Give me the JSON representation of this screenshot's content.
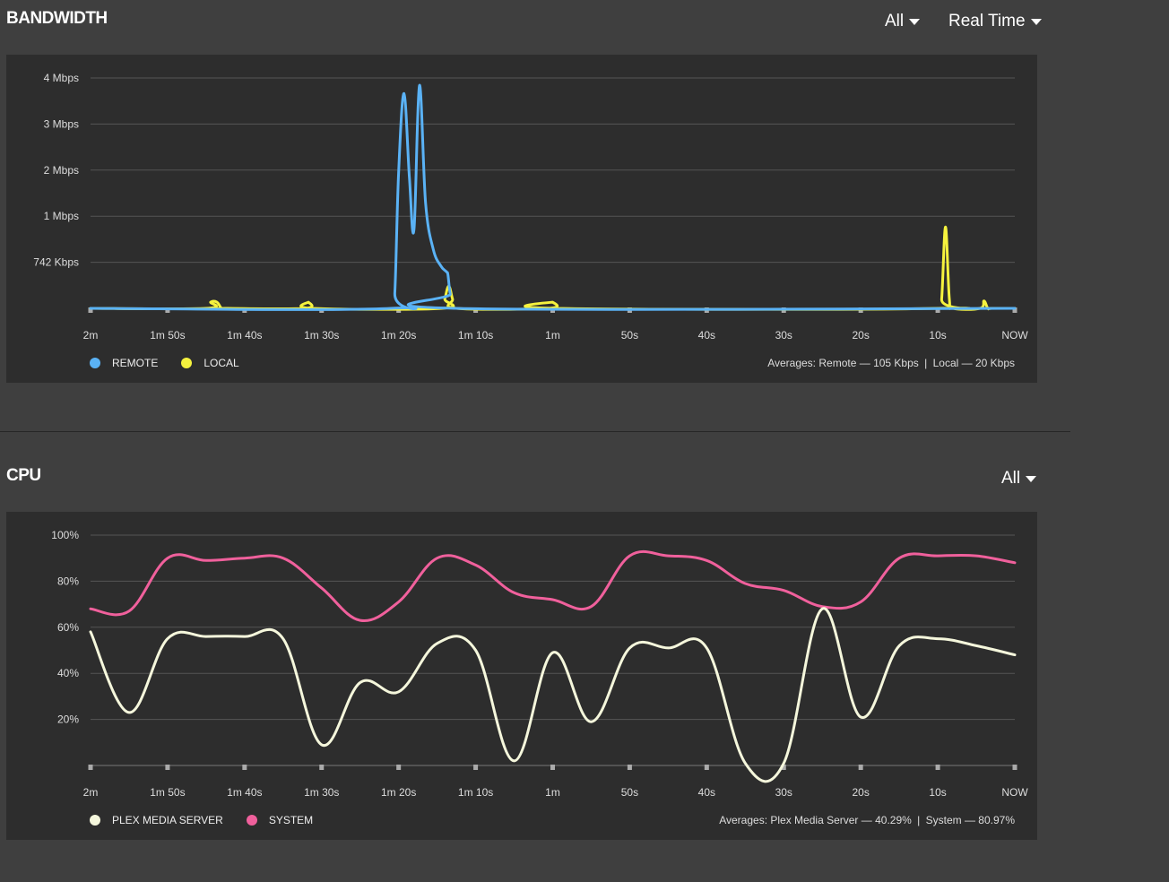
{
  "bandwidth": {
    "title": "BANDWIDTH",
    "filter_label": "All",
    "timeframe_label": "Real Time",
    "legend": [
      {
        "label": "REMOTE",
        "color": "#5ab2f5"
      },
      {
        "label": "LOCAL",
        "color": "#f5f23e"
      }
    ],
    "averages": {
      "prefix": "Averages:",
      "remote_label": "Remote",
      "remote_value": "105 Kbps",
      "separator": "|",
      "local_label": "Local",
      "local_value": "20 Kbps"
    }
  },
  "cpu": {
    "title": "CPU",
    "filter_label": "All",
    "legend": [
      {
        "label": "PLEX MEDIA SERVER",
        "color": "#f5f7dc"
      },
      {
        "label": "SYSTEM",
        "color": "#f0609c"
      }
    ],
    "averages": {
      "prefix": "Averages:",
      "pms_label": "Plex Media Server",
      "pms_value": "40.29%",
      "separator": "|",
      "system_label": "System",
      "system_value": "80.97%"
    }
  },
  "chart_data": [
    {
      "type": "line",
      "x_unit": "seconds ago",
      "x_ticks": [
        {
          "value": 120,
          "label": "2m"
        },
        {
          "value": 110,
          "label": "1m 50s"
        },
        {
          "value": 100,
          "label": "1m 40s"
        },
        {
          "value": 90,
          "label": "1m 30s"
        },
        {
          "value": 80,
          "label": "1m 20s"
        },
        {
          "value": 70,
          "label": "1m 10s"
        },
        {
          "value": 60,
          "label": "1m"
        },
        {
          "value": 50,
          "label": "50s"
        },
        {
          "value": 40,
          "label": "40s"
        },
        {
          "value": 30,
          "label": "30s"
        },
        {
          "value": 20,
          "label": "20s"
        },
        {
          "value": 10,
          "label": "10s"
        },
        {
          "value": 0,
          "label": "NOW"
        }
      ],
      "y_unit": "Kbps",
      "y_ticks": [
        {
          "value": 742,
          "label": "742 Kbps"
        },
        {
          "value": 1484,
          "label": "1 Mbps"
        },
        {
          "value": 2226,
          "label": "2 Mbps"
        },
        {
          "value": 2968,
          "label": "3 Mbps"
        },
        {
          "value": 3710,
          "label": "4 Mbps"
        }
      ],
      "ylim": [
        0,
        3710
      ],
      "grid": true,
      "series": [
        {
          "name": "REMOTE",
          "color": "#5ab2f5",
          "x": [
            120,
            81,
            80.5,
            80,
            79.3,
            78.6,
            78,
            77.3,
            76.5,
            75.5,
            74.5,
            73.8,
            73.6,
            73.3,
            72.8,
            0
          ],
          "y": [
            0,
            0,
            250,
            2200,
            3460,
            2100,
            1270,
            3590,
            1700,
            950,
            680,
            590,
            540,
            230,
            0,
            0
          ]
        },
        {
          "name": "LOCAL",
          "color": "#f5f23e",
          "x": [
            120,
            105,
            104.4,
            103.6,
            103,
            102.5,
            92.2,
            91.7,
            91.2,
            74.3,
            74,
            73.5,
            73,
            72.5,
            60.5,
            60,
            59.5,
            10,
            9.5,
            9,
            8.5,
            8,
            4.5,
            4,
            3.5,
            3,
            0
          ],
          "y": [
            0,
            0,
            100,
            100,
            0,
            0,
            0,
            100,
            0,
            0,
            150,
            360,
            150,
            0,
            0,
            100,
            0,
            0,
            150,
            1310,
            150,
            0,
            0,
            120,
            0,
            0,
            0
          ]
        }
      ]
    },
    {
      "type": "line",
      "x_unit": "seconds ago",
      "x_ticks": [
        {
          "value": 120,
          "label": "2m"
        },
        {
          "value": 110,
          "label": "1m 50s"
        },
        {
          "value": 100,
          "label": "1m 40s"
        },
        {
          "value": 90,
          "label": "1m 30s"
        },
        {
          "value": 80,
          "label": "1m 20s"
        },
        {
          "value": 70,
          "label": "1m 10s"
        },
        {
          "value": 60,
          "label": "1m"
        },
        {
          "value": 50,
          "label": "50s"
        },
        {
          "value": 40,
          "label": "40s"
        },
        {
          "value": 30,
          "label": "30s"
        },
        {
          "value": 20,
          "label": "20s"
        },
        {
          "value": 10,
          "label": "10s"
        },
        {
          "value": 0,
          "label": "NOW"
        }
      ],
      "y_unit": "%",
      "y_ticks": [
        {
          "value": 20,
          "label": "20%"
        },
        {
          "value": 40,
          "label": "40%"
        },
        {
          "value": 60,
          "label": "60%"
        },
        {
          "value": 80,
          "label": "80%"
        },
        {
          "value": 100,
          "label": "100%"
        }
      ],
      "ylim": [
        0,
        100
      ],
      "grid": true,
      "series": [
        {
          "name": "PLEX MEDIA SERVER",
          "color": "#f5f7dc",
          "x": [
            120,
            115,
            110,
            105,
            100,
            95,
            90,
            85,
            80,
            75,
            70,
            65,
            60,
            55,
            50,
            45,
            40,
            35,
            30,
            25,
            20,
            15,
            10,
            5,
            0
          ],
          "y": [
            58,
            23,
            55,
            56,
            56,
            55,
            9,
            36,
            32,
            53,
            50,
            2,
            49,
            19,
            51,
            51,
            51,
            1,
            1,
            68,
            21,
            52,
            55,
            52,
            48
          ]
        },
        {
          "name": "SYSTEM",
          "color": "#f0609c",
          "x": [
            120,
            115,
            110,
            105,
            100,
            95,
            90,
            85,
            80,
            75,
            70,
            65,
            60,
            55,
            50,
            45,
            40,
            35,
            30,
            25,
            20,
            15,
            10,
            5,
            0
          ],
          "y": [
            68,
            67,
            90,
            89,
            90,
            90,
            77,
            63,
            71,
            90,
            87,
            75,
            72,
            69,
            91,
            91,
            89,
            79,
            76,
            69,
            71,
            90,
            91,
            91,
            88
          ]
        }
      ]
    }
  ]
}
